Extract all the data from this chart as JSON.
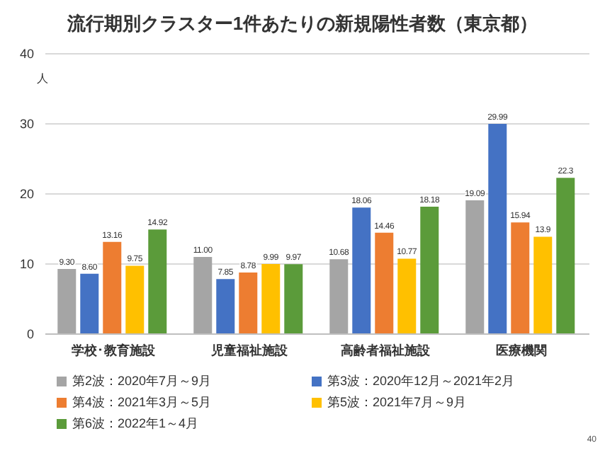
{
  "chart_data": {
    "type": "bar",
    "title": "流行期別クラスター1件あたりの新規陽性者数（東京都）",
    "ylabel": "人",
    "categories": [
      "学校･教育施設",
      "児童福祉施設",
      "高齢者福祉施設",
      "医療機関"
    ],
    "series": [
      {
        "name": "第2波：2020年7月～9月",
        "color": "#a5a5a5",
        "values": [
          9.3,
          11.0,
          10.68,
          19.09
        ],
        "value_labels": [
          "9.30",
          "11.00",
          "10.68",
          "19.09"
        ]
      },
      {
        "name": "第3波：2020年12月～2021年2月",
        "color": "#4472c4",
        "values": [
          8.6,
          7.85,
          18.06,
          29.99
        ],
        "value_labels": [
          "8.60",
          "7.85",
          "18.06",
          "29.99"
        ]
      },
      {
        "name": "第4波：2021年3月～5月",
        "color": "#ed7d31",
        "values": [
          13.16,
          8.78,
          14.46,
          15.94
        ],
        "value_labels": [
          "13.16",
          "8.78",
          "14.46",
          "15.94"
        ]
      },
      {
        "name": "第5波：2021年7月～9月",
        "color": "#ffc000",
        "values": [
          9.75,
          9.99,
          10.77,
          13.9
        ],
        "value_labels": [
          "9.75",
          "9.99",
          "10.77",
          "13.9"
        ]
      },
      {
        "name": "第6波：2022年1～4月",
        "color": "#5b9b3a",
        "values": [
          14.92,
          9.97,
          18.18,
          22.3
        ],
        "value_labels": [
          "14.92",
          "9.97",
          "18.18",
          "22.3"
        ]
      }
    ],
    "ylim": [
      0,
      40
    ],
    "yticks": [
      0,
      10,
      20,
      30,
      40
    ],
    "grid": "y",
    "legend": "bottom",
    "annotations": [
      "40"
    ]
  }
}
